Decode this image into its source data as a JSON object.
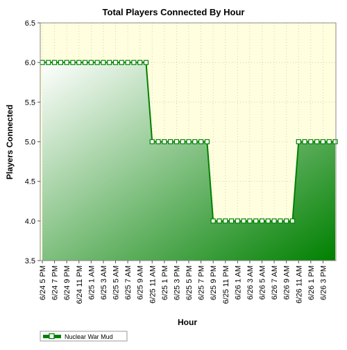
{
  "chart_data": {
    "type": "area",
    "title": "Total Players Connected By Hour",
    "xlabel": "Hour",
    "ylabel": "Players Connected",
    "ylim": [
      3.5,
      6.5
    ],
    "y_ticks": [
      "3.5",
      "4.0",
      "4.5",
      "5.0",
      "5.5",
      "6.0",
      "6.5"
    ],
    "grid": true,
    "legend_position": "bottom-left",
    "x_tick_labels": [
      "6/24 5 PM",
      "6/24 7 PM",
      "6/24 9 PM",
      "6/24 11 PM",
      "6/25 1 AM",
      "6/25 3 AM",
      "6/25 5 AM",
      "6/25 7 AM",
      "6/25 9 AM",
      "6/25 11 AM",
      "6/25 1 PM",
      "6/25 3 PM",
      "6/25 5 PM",
      "6/25 7 PM",
      "6/25 9 PM",
      "6/25 11 PM",
      "6/26 1 AM",
      "6/26 3 AM",
      "6/26 5 AM",
      "6/26 7 AM",
      "6/26 9 AM",
      "6/26 11 AM",
      "6/26 1 PM",
      "6/26 3 PM"
    ],
    "x_start": "6/24 5 PM",
    "series": [
      {
        "name": "Nuclear War Mud",
        "color": "#008000",
        "values": [
          6,
          6,
          6,
          6,
          6,
          6,
          6,
          6,
          6,
          6,
          6,
          6,
          6,
          6,
          6,
          6,
          6,
          6,
          5,
          5,
          5,
          5,
          5,
          5,
          5,
          5,
          5,
          5,
          4,
          4,
          4,
          4,
          4,
          4,
          4,
          4,
          4,
          4,
          4,
          4,
          4,
          4,
          5,
          5,
          5,
          5,
          5,
          5,
          5
        ]
      }
    ],
    "colors": {
      "plot_background": "#ffffe0",
      "area_dark": "#008000",
      "area_light": "#ffffff",
      "grid": "#c8c8a0"
    }
  }
}
